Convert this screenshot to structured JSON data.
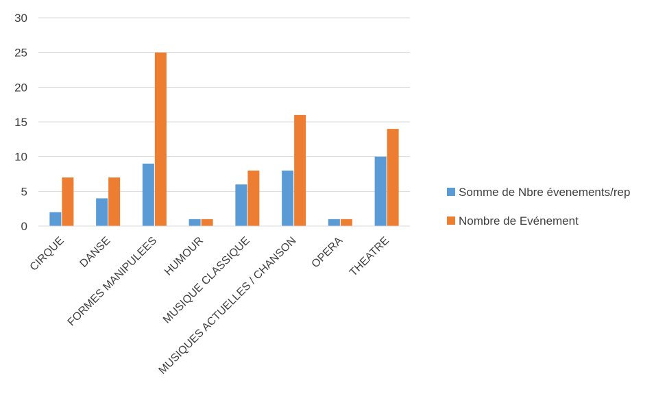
{
  "chart_data": {
    "type": "bar",
    "categories": [
      "CIRQUE",
      "DANSE",
      "FORMES MANIPULEES",
      "HUMOUR",
      "MUSIQUE CLASSIQUE",
      "MUSIQUES ACTUELLES / CHANSON",
      "OPERA",
      "THEATRE"
    ],
    "series": [
      {
        "name": "Somme de Nbre évenements/rep",
        "values": [
          2,
          4,
          9,
          1,
          6,
          8,
          1,
          10
        ],
        "color": "#5b9bd5"
      },
      {
        "name": "Nombre de Evénement",
        "values": [
          7,
          7,
          25,
          1,
          8,
          16,
          1,
          14
        ],
        "color": "#ed7d31"
      }
    ],
    "ylim": [
      0,
      30
    ],
    "yticks": [
      0,
      5,
      10,
      15,
      20,
      25,
      30
    ],
    "grid": true,
    "legend_position": "right"
  }
}
